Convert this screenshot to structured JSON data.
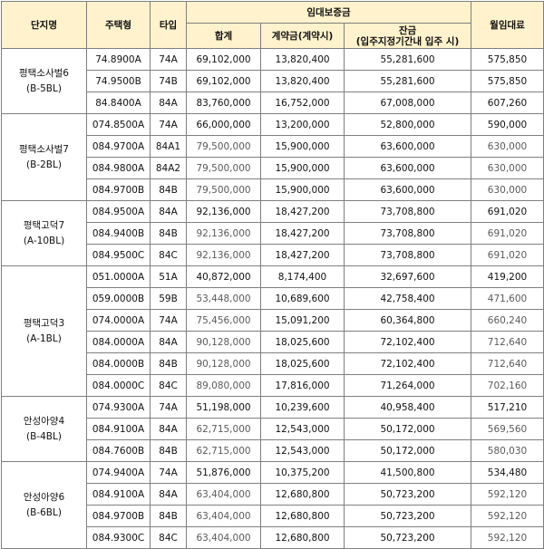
{
  "headers": {
    "complex": "단지명",
    "housing_type": "주택형",
    "unit_type": "타입",
    "deposit_group": "임대보증금",
    "total": "합계",
    "contract": "계약금(계약시)",
    "balance_line1": "잔금",
    "balance_line2": "(입주지정기간내 입주 시)",
    "monthly_rent": "월임대료"
  },
  "groups": [
    {
      "name_line1": "평택소사벌6",
      "name_line2": "(B-5BL)",
      "rows": [
        {
          "housing_type": "74.8900A",
          "unit_type": "74A",
          "total": "69,102,000",
          "contract": "13,820,400",
          "balance": "55,281,600",
          "monthly_rent": "575,850",
          "gray": false
        },
        {
          "housing_type": "74.9500B",
          "unit_type": "74B",
          "total": "69,102,000",
          "contract": "13,820,400",
          "balance": "55,281,600",
          "monthly_rent": "575,850",
          "gray": false
        },
        {
          "housing_type": "84.8400A",
          "unit_type": "84A",
          "total": "83,760,000",
          "contract": "16,752,000",
          "balance": "67,008,000",
          "monthly_rent": "607,260",
          "gray": false
        }
      ]
    },
    {
      "name_line1": "평택소사벌7",
      "name_line2": "(B-2BL)",
      "rows": [
        {
          "housing_type": "074.8500A",
          "unit_type": "74A",
          "total": "66,000,000",
          "contract": "13,200,000",
          "balance": "52,800,000",
          "monthly_rent": "590,000",
          "gray": false
        },
        {
          "housing_type": "084.9700A",
          "unit_type": "84A1",
          "total": "79,500,000",
          "contract": "15,900,000",
          "balance": "63,600,000",
          "monthly_rent": "630,000",
          "gray": true
        },
        {
          "housing_type": "084.9800A",
          "unit_type": "84A2",
          "total": "79,500,000",
          "contract": "15,900,000",
          "balance": "63,600,000",
          "monthly_rent": "630,000",
          "gray": true
        },
        {
          "housing_type": "084.9700B",
          "unit_type": "84B",
          "total": "79,500,000",
          "contract": "15,900,000",
          "balance": "63,600,000",
          "monthly_rent": "630,000",
          "gray": true
        }
      ]
    },
    {
      "name_line1": "평택고덕7",
      "name_line2": "(A-10BL)",
      "rows": [
        {
          "housing_type": "084.9500A",
          "unit_type": "84A",
          "total": "92,136,000",
          "contract": "18,427,200",
          "balance": "73,708,800",
          "monthly_rent": "691,020",
          "gray": false
        },
        {
          "housing_type": "084.9400B",
          "unit_type": "84B",
          "total": "92,136,000",
          "contract": "18,427,200",
          "balance": "73,708,800",
          "monthly_rent": "691,020",
          "gray": true
        },
        {
          "housing_type": "084.9500C",
          "unit_type": "84C",
          "total": "92,136,000",
          "contract": "18,427,200",
          "balance": "73,708,800",
          "monthly_rent": "691,020",
          "gray": true
        }
      ]
    },
    {
      "name_line1": "평택고덕3",
      "name_line2": "(A-1BL)",
      "rows": [
        {
          "housing_type": "051.0000A",
          "unit_type": "51A",
          "total": "40,872,000",
          "contract": "8,174,400",
          "balance": "32,697,600",
          "monthly_rent": "419,200",
          "gray": false
        },
        {
          "housing_type": "059.0000B",
          "unit_type": "59B",
          "total": "53,448,000",
          "contract": "10,689,600",
          "balance": "42,758,400",
          "monthly_rent": "471,600",
          "gray": true
        },
        {
          "housing_type": "074.0000A",
          "unit_type": "74A",
          "total": "75,456,000",
          "contract": "15,091,200",
          "balance": "60,364,800",
          "monthly_rent": "660,240",
          "gray": true
        },
        {
          "housing_type": "084.0000A",
          "unit_type": "84A",
          "total": "90,128,000",
          "contract": "18,025,600",
          "balance": "72,102,400",
          "monthly_rent": "712,640",
          "gray": true
        },
        {
          "housing_type": "084.0000B",
          "unit_type": "84B",
          "total": "90,128,000",
          "contract": "18,025,600",
          "balance": "72,102,400",
          "monthly_rent": "712,640",
          "gray": true
        },
        {
          "housing_type": "084.0000C",
          "unit_type": "84C",
          "total": "89,080,000",
          "contract": "17,816,000",
          "balance": "71,264,000",
          "monthly_rent": "702,160",
          "gray": true
        }
      ]
    },
    {
      "name_line1": "안성아양4",
      "name_line2": "(B-4BL)",
      "rows": [
        {
          "housing_type": "074.9300A",
          "unit_type": "74A",
          "total": "51,198,000",
          "contract": "10,239,600",
          "balance": "40,958,400",
          "monthly_rent": "517,210",
          "gray": false
        },
        {
          "housing_type": "084.9100A",
          "unit_type": "84A",
          "total": "62,715,000",
          "contract": "12,543,000",
          "balance": "50,172,000",
          "monthly_rent": "569,560",
          "gray": true
        },
        {
          "housing_type": "084.7600B",
          "unit_type": "84B",
          "total": "62,715,000",
          "contract": "12,543,000",
          "balance": "50,172,000",
          "monthly_rent": "580,030",
          "gray": true
        }
      ]
    },
    {
      "name_line1": "안성아양6",
      "name_line2": "(B-6BL)",
      "rows": [
        {
          "housing_type": "074.9400A",
          "unit_type": "74A",
          "total": "51,876,000",
          "contract": "10,375,200",
          "balance": "41,500,800",
          "monthly_rent": "534,480",
          "gray": false
        },
        {
          "housing_type": "084.9100A",
          "unit_type": "84A",
          "total": "63,404,000",
          "contract": "12,680,800",
          "balance": "50,723,200",
          "monthly_rent": "592,120",
          "gray": true
        },
        {
          "housing_type": "084.9700B",
          "unit_type": "84B",
          "total": "63,404,000",
          "contract": "12,680,800",
          "balance": "50,723,200",
          "monthly_rent": "592,120",
          "gray": true
        },
        {
          "housing_type": "084.9300C",
          "unit_type": "84C",
          "total": "63,404,000",
          "contract": "12,680,800",
          "balance": "50,723,200",
          "monthly_rent": "592,120",
          "gray": true
        }
      ]
    }
  ]
}
